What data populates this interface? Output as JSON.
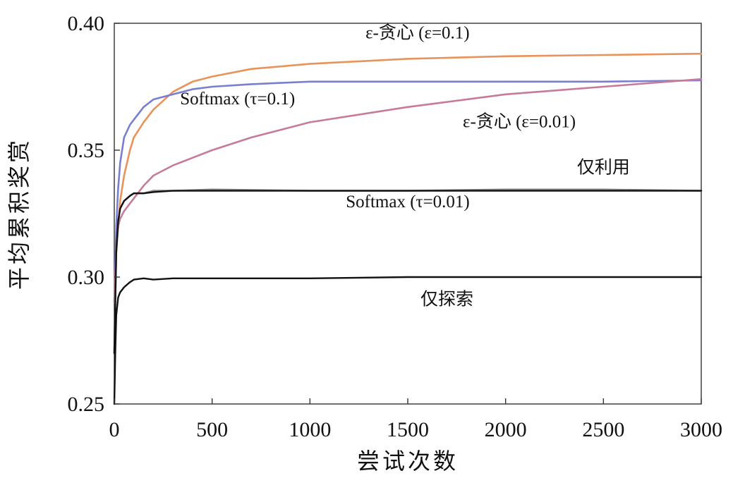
{
  "chart_data": {
    "type": "line",
    "title": "",
    "xlabel": "尝试次数",
    "ylabel": "平均累积奖赏",
    "xlim": [
      0,
      3000
    ],
    "ylim": [
      0.25,
      0.4
    ],
    "xticks": [
      0,
      500,
      1000,
      1500,
      2000,
      2500,
      3000
    ],
    "yticks": [
      0.25,
      0.3,
      0.35,
      0.4
    ],
    "xtick_labels": [
      "0",
      "500",
      "1000",
      "1500",
      "2000",
      "2500",
      "3000"
    ],
    "ytick_labels": [
      "0.25",
      "0.30",
      "0.35",
      "0.40"
    ],
    "grid": false,
    "legend": "inline annotations",
    "series": [
      {
        "name": "ε-贪心 (ε=0.1)",
        "color": "#e8935a",
        "x": [
          0,
          10,
          20,
          30,
          50,
          80,
          100,
          150,
          200,
          300,
          400,
          500,
          700,
          1000,
          1500,
          2000,
          2500,
          3000
        ],
        "y": [
          0.29,
          0.31,
          0.32,
          0.33,
          0.34,
          0.35,
          0.355,
          0.361,
          0.366,
          0.373,
          0.377,
          0.379,
          0.382,
          0.384,
          0.386,
          0.387,
          0.3875,
          0.388
        ]
      },
      {
        "name": "Softmax (τ=0.1)",
        "color": "#7a7ed0",
        "x": [
          0,
          10,
          20,
          30,
          50,
          80,
          100,
          150,
          200,
          300,
          400,
          500,
          700,
          1000,
          1500,
          2000,
          2500,
          3000
        ],
        "y": [
          0.29,
          0.32,
          0.335,
          0.345,
          0.355,
          0.36,
          0.362,
          0.367,
          0.37,
          0.372,
          0.374,
          0.375,
          0.376,
          0.377,
          0.377,
          0.377,
          0.377,
          0.3775
        ]
      },
      {
        "name": "ε-贪心 (ε=0.01)",
        "color": "#c77a9a",
        "x": [
          0,
          10,
          20,
          30,
          50,
          80,
          100,
          150,
          200,
          300,
          400,
          500,
          700,
          1000,
          1500,
          2000,
          2500,
          3000
        ],
        "y": [
          0.29,
          0.31,
          0.32,
          0.323,
          0.326,
          0.329,
          0.331,
          0.336,
          0.34,
          0.344,
          0.347,
          0.35,
          0.355,
          0.361,
          0.367,
          0.372,
          0.375,
          0.378
        ]
      },
      {
        "name": "仅利用",
        "color": "#888888",
        "x": [
          0,
          10,
          20,
          30,
          50,
          80,
          100,
          150,
          200,
          300,
          500,
          1000,
          1500,
          2000,
          2500,
          3000
        ],
        "y": [
          0.27,
          0.31,
          0.322,
          0.327,
          0.33,
          0.332,
          0.333,
          0.333,
          0.334,
          0.334,
          0.3345,
          0.334,
          0.334,
          0.3345,
          0.3345,
          0.334
        ]
      },
      {
        "name": "Softmax (τ=0.01)",
        "color": "#111111",
        "x": [
          0,
          10,
          20,
          30,
          50,
          80,
          100,
          150,
          200,
          300,
          500,
          1000,
          1500,
          2000,
          2500,
          3000
        ],
        "y": [
          0.27,
          0.31,
          0.322,
          0.327,
          0.33,
          0.332,
          0.333,
          0.333,
          0.3335,
          0.334,
          0.334,
          0.334,
          0.334,
          0.334,
          0.334,
          0.334
        ]
      },
      {
        "name": "仅探索",
        "color": "#111111",
        "x": [
          0,
          5,
          10,
          20,
          30,
          50,
          80,
          100,
          150,
          200,
          300,
          500,
          1000,
          1500,
          2000,
          2500,
          3000
        ],
        "y": [
          0.25,
          0.27,
          0.285,
          0.292,
          0.294,
          0.296,
          0.298,
          0.299,
          0.2995,
          0.299,
          0.2995,
          0.2995,
          0.2995,
          0.3,
          0.3,
          0.3,
          0.3
        ]
      }
    ],
    "annotations": [
      {
        "text": "ε-贪心 (ε=0.1)",
        "x": 1550,
        "y": 0.394
      },
      {
        "text": "Softmax (τ=0.1)",
        "x": 630,
        "y": 0.368
      },
      {
        "text": "ε-贪心 (ε=0.01)",
        "x": 2070,
        "y": 0.359
      },
      {
        "text": "仅利用",
        "x": 2500,
        "y": 0.341
      },
      {
        "text": "Softmax (τ=0.01)",
        "x": 1500,
        "y": 0.3275
      },
      {
        "text": "仅探索",
        "x": 1700,
        "y": 0.289
      }
    ]
  }
}
